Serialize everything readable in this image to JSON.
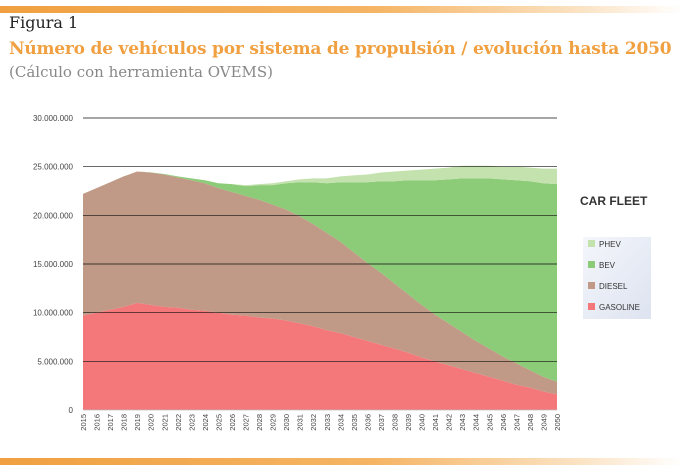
{
  "figure": {
    "label": "Figura 1",
    "title": "Número de vehículos por sistema de propulsión / evolución hasta 2050",
    "subtitle": "(Cálculo con herramienta OVEMS)"
  },
  "chart_data": {
    "type": "area",
    "stacked": true,
    "title": "",
    "xlabel": "",
    "ylabel": "",
    "ylim": [
      0,
      30000000
    ],
    "y_ticks": [
      0,
      5000000,
      10000000,
      15000000,
      20000000,
      25000000,
      30000000
    ],
    "y_tick_labels": [
      "0",
      "5.000.000",
      "10.000.000",
      "15.000.000",
      "20.000.000",
      "25.000.000",
      "30.000.000"
    ],
    "grid": true,
    "legend": {
      "title": "CAR FLEET",
      "position": "right"
    },
    "x": [
      2015,
      2016,
      2017,
      2018,
      2019,
      2020,
      2021,
      2022,
      2023,
      2024,
      2025,
      2026,
      2027,
      2028,
      2029,
      2030,
      2031,
      2032,
      2033,
      2034,
      2035,
      2036,
      2037,
      2038,
      2039,
      2040,
      2041,
      2042,
      2043,
      2044,
      2045,
      2046,
      2047,
      2048,
      2049,
      2050
    ],
    "series": [
      {
        "name": "GASOLINE",
        "color": "#f4777a",
        "values": [
          9700000,
          10000000,
          10300000,
          10600000,
          11000000,
          10800000,
          10600000,
          10500000,
          10300000,
          10200000,
          10000000,
          9800000,
          9700000,
          9500000,
          9400000,
          9200000,
          8900000,
          8600000,
          8200000,
          7900000,
          7500000,
          7100000,
          6700000,
          6300000,
          5900000,
          5400000,
          5000000,
          4600000,
          4200000,
          3800000,
          3400000,
          3000000,
          2600000,
          2300000,
          1900000,
          1600000
        ]
      },
      {
        "name": "DIESEL",
        "color": "#c09a86",
        "values": [
          12500000,
          12800000,
          13100000,
          13400000,
          13500000,
          13600000,
          13600000,
          13400000,
          13300000,
          13100000,
          12800000,
          12600000,
          12300000,
          12100000,
          11700000,
          11400000,
          11000000,
          10500000,
          10000000,
          9400000,
          8700000,
          8000000,
          7400000,
          6700000,
          6000000,
          5400000,
          4800000,
          4300000,
          3800000,
          3300000,
          2900000,
          2500000,
          2200000,
          1800000,
          1500000,
          1300000
        ]
      },
      {
        "name": "BEV",
        "color": "#8ccb77",
        "values": [
          0,
          0,
          0,
          0,
          0,
          10000,
          50000,
          100000,
          200000,
          300000,
          500000,
          800000,
          1000000,
          1500000,
          2000000,
          2700000,
          3500000,
          4300000,
          5100000,
          6100000,
          7200000,
          8300000,
          9400000,
          10500000,
          11700000,
          12800000,
          13800000,
          14800000,
          15800000,
          16700000,
          17500000,
          18200000,
          18800000,
          19400000,
          19900000,
          20300000
        ]
      },
      {
        "name": "PHEV",
        "color": "#c4e2ae",
        "values": [
          0,
          0,
          0,
          0,
          0,
          0,
          0,
          0,
          0,
          0,
          0,
          0,
          100000,
          100000,
          200000,
          200000,
          300000,
          400000,
          500000,
          600000,
          700000,
          800000,
          900000,
          1000000,
          1000000,
          1100000,
          1200000,
          1200000,
          1300000,
          1300000,
          1300000,
          1300000,
          1400000,
          1400000,
          1500000,
          1600000
        ]
      }
    ]
  }
}
